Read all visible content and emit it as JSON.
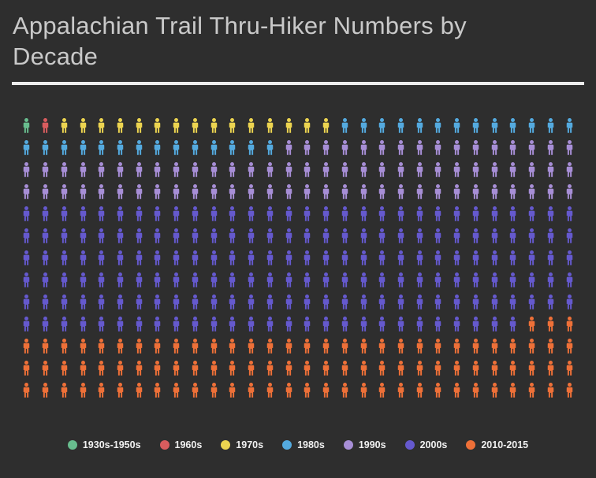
{
  "chart_data": {
    "type": "pictogram",
    "title": "Appalachian Trail Thru-Hiker Numbers by Decade",
    "icon": "person",
    "columns": 30,
    "total_icons": 390,
    "series": [
      {
        "name": "1930s-1950s",
        "color": "#68bd8e",
        "icons": 1
      },
      {
        "name": "1960s",
        "color": "#d85c5e",
        "icons": 1
      },
      {
        "name": "1970s",
        "color": "#ecd450",
        "icons": 15
      },
      {
        "name": "1980s",
        "color": "#54aadf",
        "icons": 27
      },
      {
        "name": "1990s",
        "color": "#a78ed6",
        "icons": 76
      },
      {
        "name": "2000s",
        "color": "#6559ce",
        "icons": 177
      },
      {
        "name": "2010-2015",
        "color": "#ee7038",
        "icons": 93
      }
    ],
    "legend_position": "bottom",
    "legend_labels": [
      "1930s-1950s",
      "1960s",
      "1970s",
      "1980s",
      "1990s",
      "2000s",
      "2010-2015"
    ]
  },
  "theme": {
    "background": "#2e2e2e",
    "title_color": "#c9c9c9",
    "divider_color": "#ededed",
    "legend_text_color": "#f1f1f1"
  }
}
